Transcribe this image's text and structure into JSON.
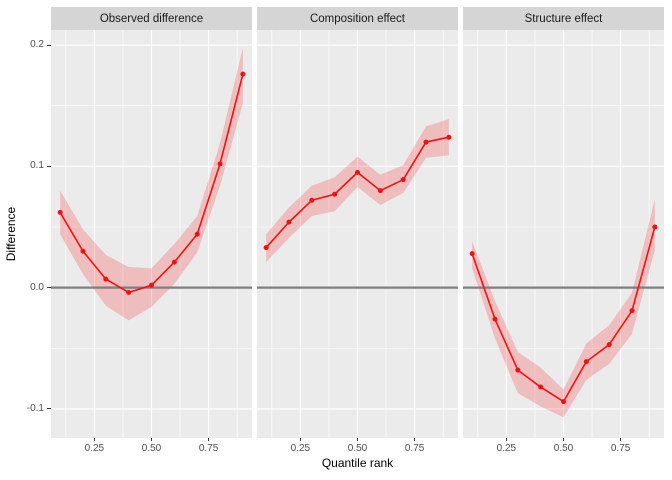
{
  "figure": {
    "x_axis_title": "Quantile rank",
    "y_axis_title": "Difference"
  },
  "colors": {
    "page_bg": "#FFFFFF",
    "panel_bg": "#EBEBEB",
    "strip_bg": "#D5D5D5",
    "strip_text": "#1A1A1A",
    "grid": "#FFFFFF",
    "zero_line": "#7F7F7F",
    "line": "#F01212",
    "ribbon": "rgba(255,0,0,0.19)",
    "tick_text": "#4D4D4D",
    "tick_mark": "#333333"
  },
  "chart_data": {
    "type": "line",
    "title": "",
    "xlabel": "Quantile rank",
    "ylabel": "Difference",
    "legend": "none",
    "grid": true,
    "x": [
      0.1,
      0.2,
      0.3,
      0.4,
      0.5,
      0.6,
      0.7,
      0.8,
      0.9
    ],
    "x_scale": {
      "min": 0.06,
      "max": 0.94,
      "ticks": [
        0.25,
        0.5,
        0.75
      ],
      "tick_labels": [
        "0.25",
        "0.50",
        "0.75"
      ],
      "minor": [
        0.125,
        0.375,
        0.625,
        0.875
      ]
    },
    "y_scale": {
      "min": -0.124,
      "max": 0.2124,
      "ticks": [
        0.2,
        0.1,
        0.0,
        -0.1
      ],
      "tick_labels": [
        "0.2",
        "0.1",
        "0.0",
        "-0.1"
      ],
      "minor": [
        0.15,
        0.05,
        -0.05
      ]
    },
    "zero_line": 0,
    "facets": [
      {
        "label": "Observed difference",
        "y": [
          0.062,
          0.03,
          0.007,
          -0.004,
          0.002,
          0.021,
          0.044,
          0.102,
          0.176
        ],
        "lower": [
          0.044,
          0.011,
          -0.015,
          -0.027,
          -0.016,
          0.003,
          0.029,
          0.084,
          0.152
        ],
        "upper": [
          0.08,
          0.048,
          0.027,
          0.017,
          0.016,
          0.036,
          0.059,
          0.119,
          0.198
        ]
      },
      {
        "label": "Composition effect",
        "y": [
          0.033,
          0.054,
          0.072,
          0.077,
          0.095,
          0.08,
          0.089,
          0.12,
          0.124
        ],
        "lower": [
          0.021,
          0.041,
          0.059,
          0.063,
          0.083,
          0.068,
          0.078,
          0.107,
          0.109
        ],
        "upper": [
          0.044,
          0.066,
          0.084,
          0.091,
          0.108,
          0.093,
          0.101,
          0.133,
          0.139
        ]
      },
      {
        "label": "Structure effect",
        "y": [
          0.028,
          -0.026,
          -0.068,
          -0.082,
          -0.094,
          -0.061,
          -0.047,
          -0.019,
          0.05
        ],
        "lower": [
          0.016,
          -0.042,
          -0.087,
          -0.098,
          -0.107,
          -0.076,
          -0.063,
          -0.038,
          0.031
        ],
        "upper": [
          0.038,
          -0.011,
          -0.053,
          -0.066,
          -0.084,
          -0.046,
          -0.031,
          -0.004,
          0.073
        ]
      }
    ]
  }
}
